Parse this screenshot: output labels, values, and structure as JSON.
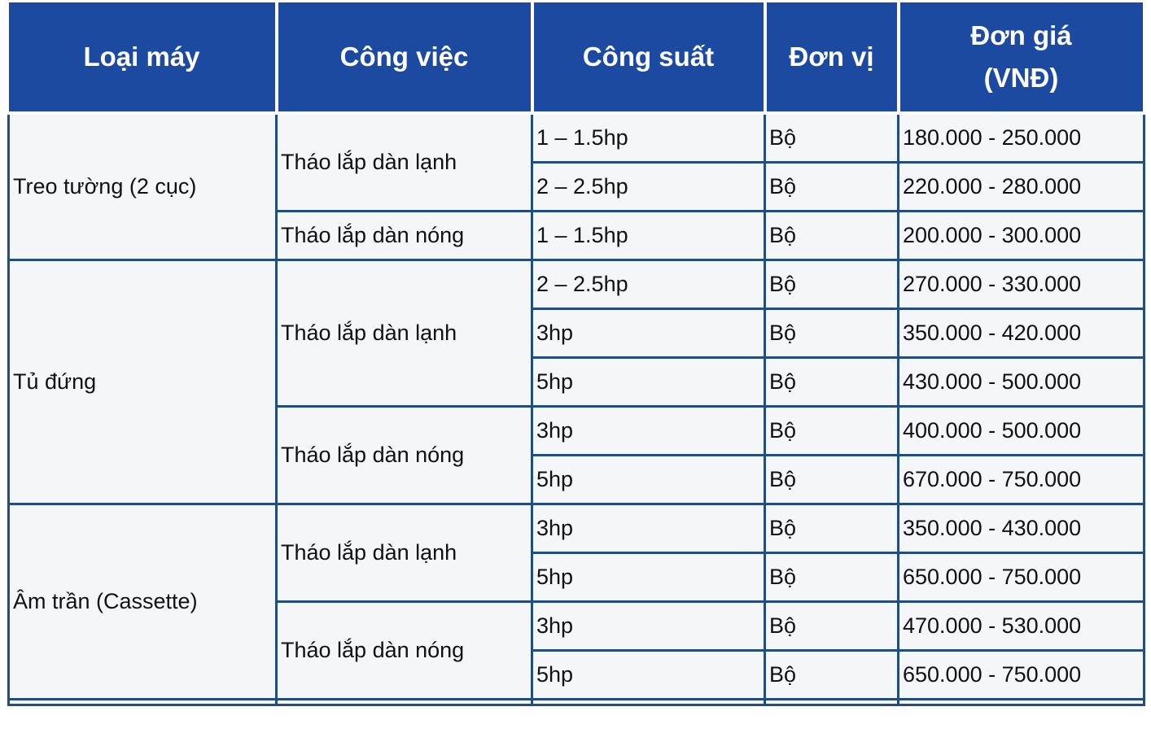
{
  "headers": [
    "Loại máy",
    "Công việc",
    "Công suất",
    "Đơn vị",
    "Đơn giá (VNĐ)"
  ],
  "groups": [
    {
      "type": "Treo tường (2 cục)",
      "jobs": [
        {
          "job": "Tháo lắp dàn lạnh",
          "items": [
            {
              "capacity": "1 – 1.5hp",
              "unit": "Bộ",
              "price": "180.000 - 250.000"
            },
            {
              "capacity": "2 – 2.5hp",
              "unit": "Bộ",
              "price": "220.000 - 280.000"
            }
          ]
        },
        {
          "job": "Tháo lắp dàn nóng",
          "items": [
            {
              "capacity": "1 – 1.5hp",
              "unit": "Bộ",
              "price": "200.000 - 300.000"
            }
          ]
        }
      ]
    },
    {
      "type": "Tủ đứng",
      "jobs": [
        {
          "job": "Tháo lắp dàn lạnh",
          "items": [
            {
              "capacity": "2 – 2.5hp",
              "unit": "Bộ",
              "price": "270.000 - 330.000"
            },
            {
              "capacity": "3hp",
              "unit": "Bộ",
              "price": "350.000 - 420.000"
            },
            {
              "capacity": "5hp",
              "unit": "Bộ",
              "price": "430.000 - 500.000"
            }
          ]
        },
        {
          "job": "Tháo lắp dàn nóng",
          "items": [
            {
              "capacity": "3hp",
              "unit": "Bộ",
              "price": "400.000 - 500.000"
            },
            {
              "capacity": "5hp",
              "unit": "Bộ",
              "price": "670.000 - 750.000"
            }
          ]
        }
      ]
    },
    {
      "type": "Âm trần (Cassette)",
      "jobs": [
        {
          "job": "Tháo lắp dàn lạnh",
          "items": [
            {
              "capacity": "3hp",
              "unit": "Bộ",
              "price": "350.000 - 430.000"
            },
            {
              "capacity": "5hp",
              "unit": "Bộ",
              "price": "650.000 - 750.000"
            }
          ]
        },
        {
          "job": "Tháo lắp dàn nóng",
          "items": [
            {
              "capacity": "3hp",
              "unit": "Bộ",
              "price": "470.000 - 530.000"
            },
            {
              "capacity": "5hp",
              "unit": "Bộ",
              "price": "650.000 - 750.000"
            }
          ]
        }
      ]
    }
  ],
  "colors": {
    "header_bg": "#1d4aa1",
    "border": "#234c82",
    "cell_bg": "#f5f6f7"
  }
}
